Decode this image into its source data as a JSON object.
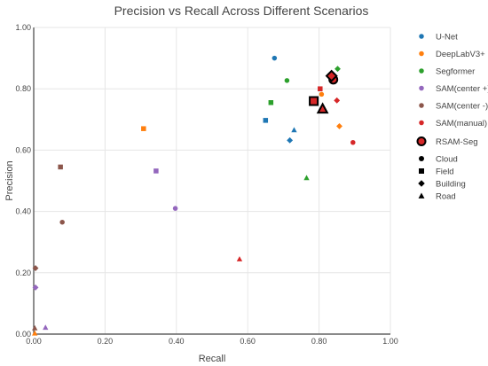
{
  "chart_data": {
    "type": "scatter",
    "title": "Precision vs Recall Across Different Scenarios",
    "xlabel": "Recall",
    "ylabel": "Precision",
    "xlim": [
      0,
      1
    ],
    "ylim": [
      0,
      1
    ],
    "xticks": [
      "0.00",
      "0.20",
      "0.40",
      "0.60",
      "0.80",
      "1.00"
    ],
    "yticks": [
      "0.00",
      "0.20",
      "0.40",
      "0.60",
      "0.80",
      "1.00"
    ],
    "grid": true,
    "legend_position": "right",
    "series": [
      {
        "name": "U-Net",
        "color": "#1f77b4",
        "points": [
          {
            "scenario": "Cloud",
            "x": 0.675,
            "y": 0.9
          },
          {
            "scenario": "Field",
            "x": 0.65,
            "y": 0.697
          },
          {
            "scenario": "Building",
            "x": 0.718,
            "y": 0.632
          },
          {
            "scenario": "Road",
            "x": 0.73,
            "y": 0.666
          }
        ]
      },
      {
        "name": "DeepLabV3+",
        "color": "#ff7f0e",
        "points": [
          {
            "scenario": "Cloud",
            "x": 0.807,
            "y": 0.782
          },
          {
            "scenario": "Field",
            "x": 0.308,
            "y": 0.67
          },
          {
            "scenario": "Building",
            "x": 0.857,
            "y": 0.678
          },
          {
            "scenario": "Road",
            "x": 0.003,
            "y": 0.003
          }
        ]
      },
      {
        "name": "Segformer",
        "color": "#2ca02c",
        "points": [
          {
            "scenario": "Cloud",
            "x": 0.71,
            "y": 0.827
          },
          {
            "scenario": "Field",
            "x": 0.665,
            "y": 0.755
          },
          {
            "scenario": "Building",
            "x": 0.852,
            "y": 0.865
          },
          {
            "scenario": "Road",
            "x": 0.765,
            "y": 0.51
          }
        ]
      },
      {
        "name": "SAM(center +)",
        "color": "#9467bd",
        "points": [
          {
            "scenario": "Cloud",
            "x": 0.397,
            "y": 0.41
          },
          {
            "scenario": "Field",
            "x": 0.343,
            "y": 0.532
          },
          {
            "scenario": "Building",
            "x": 0.005,
            "y": 0.152
          },
          {
            "scenario": "Road",
            "x": 0.033,
            "y": 0.022
          }
        ]
      },
      {
        "name": "SAM(center -)",
        "color": "#8c564b",
        "points": [
          {
            "scenario": "Cloud",
            "x": 0.08,
            "y": 0.365
          },
          {
            "scenario": "Field",
            "x": 0.075,
            "y": 0.545
          },
          {
            "scenario": "Building",
            "x": 0.005,
            "y": 0.215
          },
          {
            "scenario": "Road",
            "x": 0.003,
            "y": 0.02
          }
        ]
      },
      {
        "name": "SAM(manual)",
        "color": "#d62728",
        "points": [
          {
            "scenario": "Cloud",
            "x": 0.895,
            "y": 0.625
          },
          {
            "scenario": "Field",
            "x": 0.803,
            "y": 0.8
          },
          {
            "scenario": "Building",
            "x": 0.85,
            "y": 0.762
          },
          {
            "scenario": "Road",
            "x": 0.577,
            "y": 0.245
          }
        ]
      },
      {
        "name": "RSAM-Seg",
        "color": "#d62728",
        "outline": "#000000",
        "large": true,
        "points": [
          {
            "scenario": "Cloud",
            "x": 0.84,
            "y": 0.83
          },
          {
            "scenario": "Field",
            "x": 0.785,
            "y": 0.76
          },
          {
            "scenario": "Building",
            "x": 0.835,
            "y": 0.842
          },
          {
            "scenario": "Road",
            "x": 0.81,
            "y": 0.735
          }
        ]
      }
    ],
    "marker_legend": [
      {
        "name": "Cloud",
        "symbol": "circle"
      },
      {
        "name": "Field",
        "symbol": "square"
      },
      {
        "name": "Building",
        "symbol": "diamond"
      },
      {
        "name": "Road",
        "symbol": "triangle"
      }
    ]
  }
}
